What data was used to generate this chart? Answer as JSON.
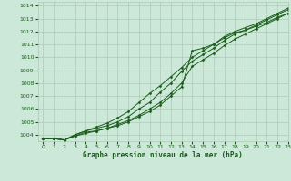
{
  "title": "Graphe pression niveau de la mer (hPa)",
  "bg_color": "#cce8d8",
  "grid_color": "#b0c8b8",
  "line_color": "#1a5e1a",
  "xlim": [
    -0.5,
    23
  ],
  "ylim": [
    1003.5,
    1014.3
  ],
  "yticks": [
    1004,
    1005,
    1006,
    1007,
    1008,
    1009,
    1010,
    1011,
    1012,
    1013,
    1014
  ],
  "xticks": [
    0,
    1,
    2,
    3,
    4,
    5,
    6,
    7,
    8,
    9,
    10,
    11,
    12,
    13,
    14,
    15,
    16,
    17,
    18,
    19,
    20,
    21,
    22,
    23
  ],
  "series": [
    [
      1003.7,
      1003.7,
      1003.6,
      1003.9,
      1004.2,
      1004.3,
      1004.5,
      1004.7,
      1005.0,
      1005.4,
      1005.8,
      1006.3,
      1007.0,
      1007.7,
      1010.5,
      1010.7,
      1011.0,
      1011.5,
      1011.9,
      1012.1,
      1012.4,
      1012.7,
      1013.1,
      1013.4
    ],
    [
      1003.7,
      1003.7,
      1003.6,
      1003.9,
      1004.1,
      1004.3,
      1004.5,
      1004.8,
      1005.1,
      1005.5,
      1006.0,
      1006.5,
      1007.2,
      1008.0,
      1009.3,
      1009.8,
      1010.3,
      1010.9,
      1011.4,
      1011.8,
      1012.2,
      1012.6,
      1013.0,
      1013.4
    ],
    [
      1003.7,
      1003.7,
      1003.6,
      1004.0,
      1004.3,
      1004.5,
      1004.7,
      1005.0,
      1005.4,
      1006.0,
      1006.5,
      1007.3,
      1008.0,
      1008.9,
      1009.7,
      1010.2,
      1010.7,
      1011.3,
      1011.8,
      1012.1,
      1012.5,
      1012.9,
      1013.3,
      1013.7
    ],
    [
      1003.7,
      1003.7,
      1003.6,
      1004.0,
      1004.3,
      1004.6,
      1004.9,
      1005.3,
      1005.8,
      1006.5,
      1007.2,
      1007.8,
      1008.5,
      1009.2,
      1010.0,
      1010.5,
      1011.0,
      1011.6,
      1012.0,
      1012.3,
      1012.6,
      1013.0,
      1013.4,
      1013.8
    ]
  ]
}
